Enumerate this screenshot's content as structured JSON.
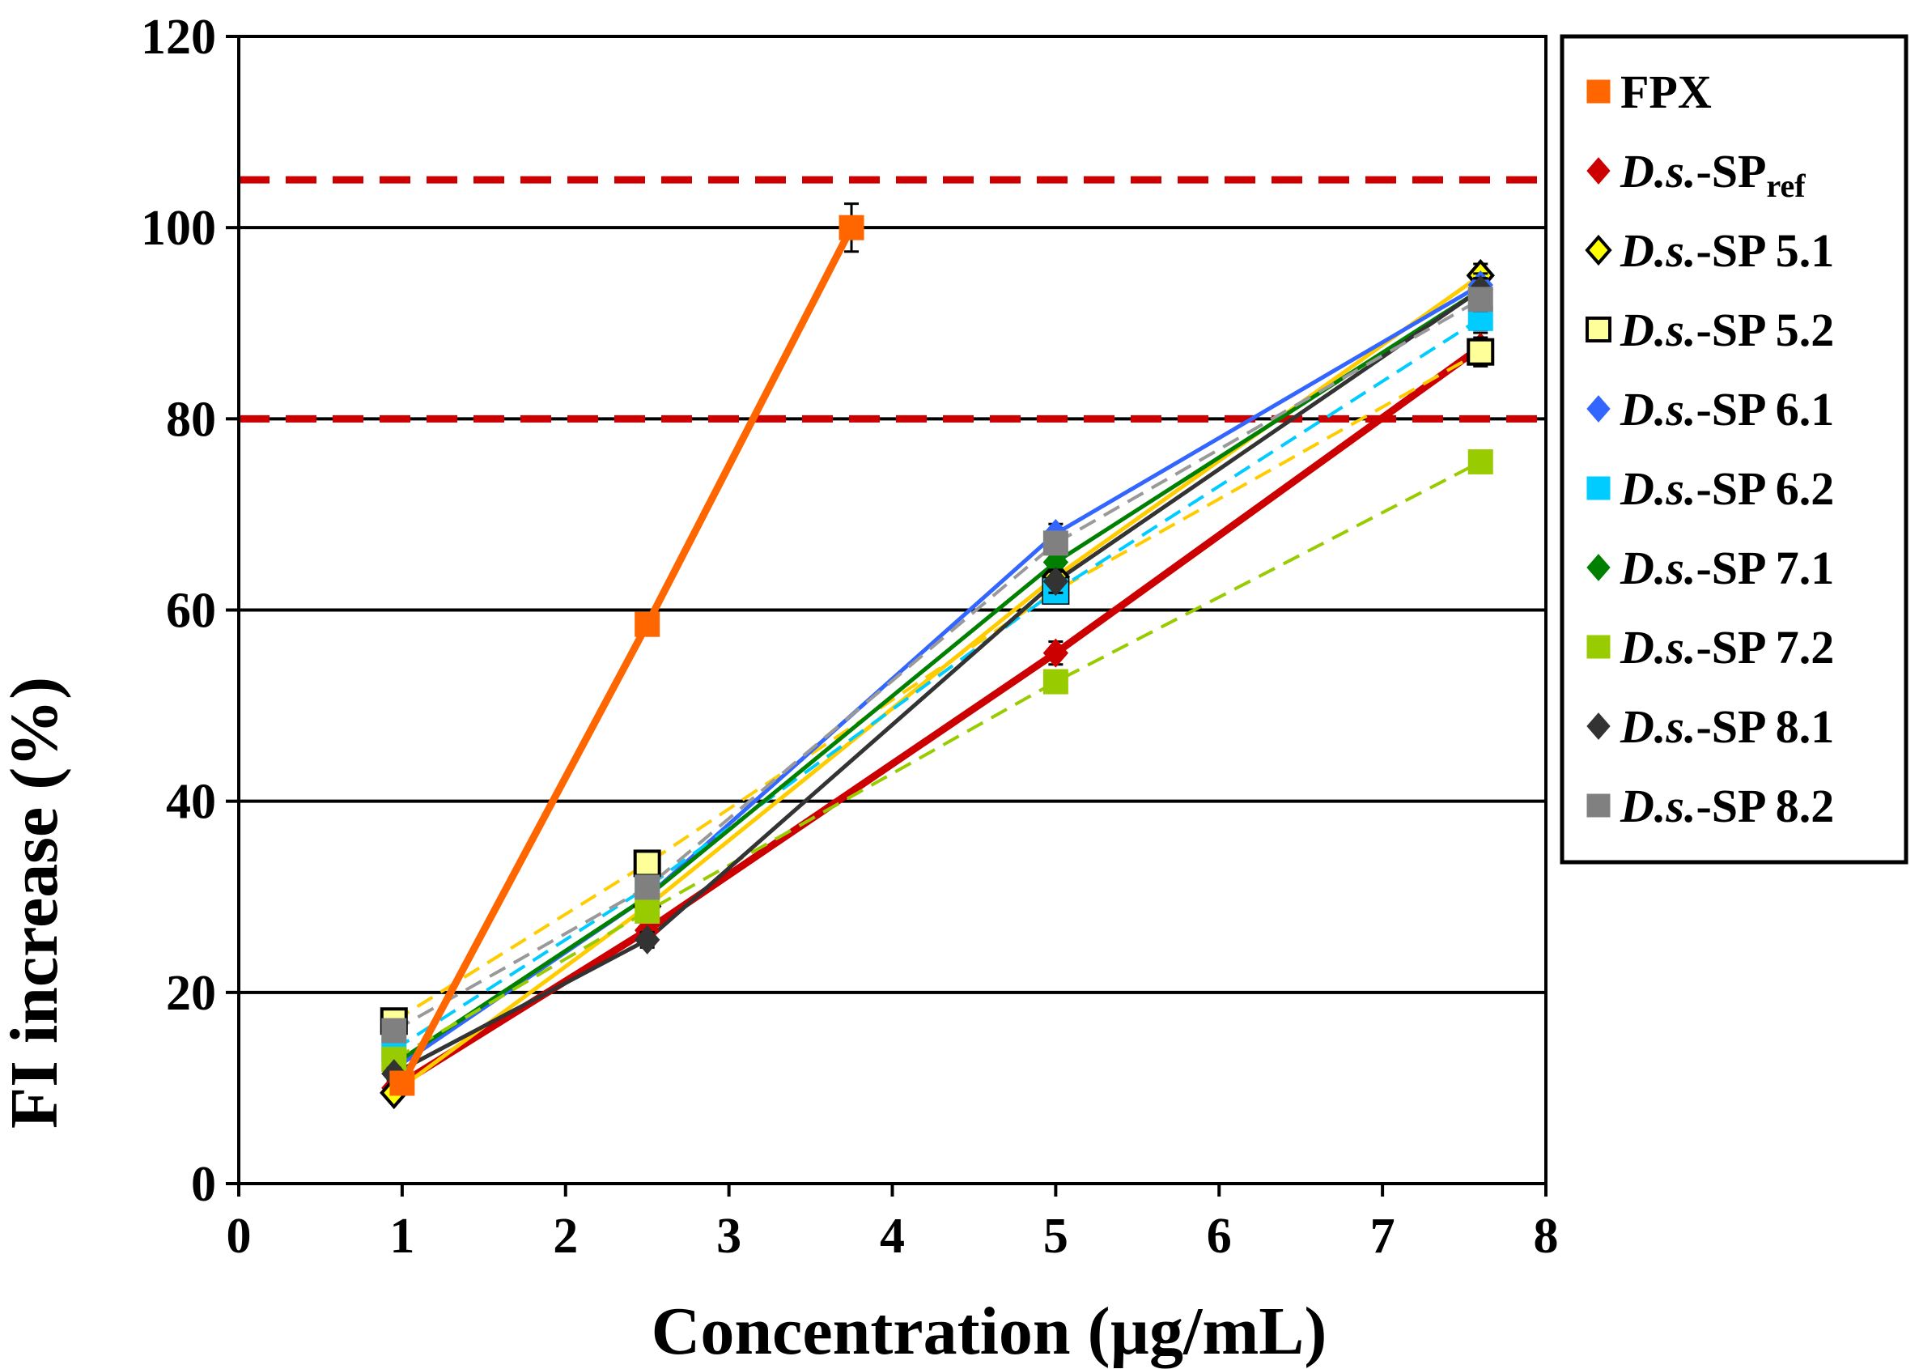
{
  "chart_data": {
    "type": "line",
    "title": "",
    "xlabel": "Concentration (µg/mL)",
    "ylabel": "FI increase (%)",
    "xlim": [
      0,
      8
    ],
    "ylim": [
      0,
      120
    ],
    "xticks": [
      0,
      1,
      2,
      3,
      4,
      5,
      6,
      7,
      8
    ],
    "yticks": [
      0,
      20,
      40,
      60,
      80,
      100,
      120
    ],
    "grid": "horizontal",
    "legend_position": "right",
    "reference_lines": [
      {
        "y": 105,
        "color": "#cc0000",
        "style": "dashed"
      },
      {
        "y": 80,
        "color": "#cc0000",
        "style": "dashed"
      }
    ],
    "series": [
      {
        "name": "FPX",
        "prefix": "",
        "suffix": "FPX",
        "subscript": "",
        "color": "#ff6600",
        "marker": "square-filled",
        "marker_color": "#ff6600",
        "line": "solid",
        "line_width": 9,
        "points": [
          [
            1.0,
            10.5
          ],
          [
            2.5,
            58.5
          ],
          [
            3.75,
            100.0
          ]
        ],
        "error": [
          1.0,
          1.0,
          2.5
        ]
      },
      {
        "name": "D.s.-SPref",
        "prefix": "D.s.",
        "suffix": "-SP",
        "subscript": "ref",
        "color": "#cc0000",
        "marker": "diamond-filled",
        "marker_color": "#cc0000",
        "line": "solid",
        "line_width": 9,
        "points": [
          [
            0.95,
            10.0
          ],
          [
            2.5,
            26.5
          ],
          [
            5.0,
            55.5
          ],
          [
            7.6,
            87.5
          ]
        ],
        "error": [
          0.8,
          0.8,
          1.2,
          1.5
        ]
      },
      {
        "name": "D.s.-SP 5.1",
        "prefix": "D.s.",
        "suffix": "-SP 5.1",
        "subscript": "",
        "color": "#ffcc00",
        "marker": "diamond-open",
        "marker_color": "#ffff00",
        "line": "solid",
        "line_width": 5,
        "points": [
          [
            0.95,
            9.5
          ],
          [
            2.5,
            29.0
          ],
          [
            5.0,
            63.5
          ],
          [
            7.6,
            95.0
          ]
        ],
        "error": [
          0.6,
          0.8,
          1.0,
          1.2
        ]
      },
      {
        "name": "D.s.-SP 5.2",
        "prefix": "D.s.",
        "suffix": "-SP 5.2",
        "subscript": "",
        "color": "#ffcc00",
        "marker": "square-open",
        "marker_color": "#ffff99",
        "line": "dashed",
        "line_width": 4,
        "points": [
          [
            0.95,
            17.0
          ],
          [
            2.5,
            33.5
          ],
          [
            5.0,
            62.0
          ],
          [
            7.6,
            87.0
          ]
        ],
        "error": [
          0.8,
          1.0,
          1.0,
          1.5
        ]
      },
      {
        "name": "D.s.-SP 6.1",
        "prefix": "D.s.",
        "suffix": "-SP 6.1",
        "subscript": "",
        "color": "#3366ff",
        "marker": "diamond-filled",
        "marker_color": "#3366ff",
        "line": "solid",
        "line_width": 5,
        "points": [
          [
            0.95,
            12.0
          ],
          [
            2.5,
            30.0
          ],
          [
            5.0,
            68.0
          ],
          [
            7.6,
            94.0
          ]
        ],
        "error": [
          0.6,
          0.8,
          1.0,
          1.2
        ]
      },
      {
        "name": "D.s.-SP 6.2",
        "prefix": "D.s.",
        "suffix": "-SP 6.2",
        "subscript": "",
        "color": "#00ccff",
        "marker": "square-filled",
        "marker_color": "#00ccff",
        "line": "dashed",
        "line_width": 4,
        "points": [
          [
            0.95,
            14.0
          ],
          [
            2.5,
            31.0
          ],
          [
            5.0,
            62.0
          ],
          [
            7.6,
            90.5
          ]
        ],
        "error": [
          0.6,
          0.8,
          1.0,
          1.2
        ]
      },
      {
        "name": "D.s.-SP 7.1",
        "prefix": "D.s.",
        "suffix": "-SP 7.1",
        "subscript": "",
        "color": "#008000",
        "marker": "diamond-filled",
        "marker_color": "#008000",
        "line": "solid",
        "line_width": 5,
        "points": [
          [
            0.95,
            12.5
          ],
          [
            2.5,
            30.0
          ],
          [
            5.0,
            65.0
          ],
          [
            7.6,
            93.5
          ]
        ],
        "error": [
          0.6,
          0.8,
          1.0,
          1.2
        ]
      },
      {
        "name": "D.s.-SP 7.2",
        "prefix": "D.s.",
        "suffix": "-SP 7.2",
        "subscript": "",
        "color": "#99cc00",
        "marker": "square-filled",
        "marker_color": "#99cc00",
        "line": "dashed",
        "line_width": 4,
        "points": [
          [
            0.95,
            13.0
          ],
          [
            2.5,
            28.5
          ],
          [
            5.0,
            52.5
          ],
          [
            7.6,
            75.5
          ]
        ],
        "error": [
          0.6,
          0.8,
          1.0,
          1.0
        ]
      },
      {
        "name": "D.s.-SP 8.1",
        "prefix": "D.s.",
        "suffix": "-SP 8.1",
        "subscript": "",
        "color": "#333333",
        "marker": "diamond-filled",
        "marker_color": "#333333",
        "line": "solid",
        "line_width": 5,
        "points": [
          [
            0.95,
            11.5
          ],
          [
            2.5,
            25.5
          ],
          [
            5.0,
            63.0
          ],
          [
            7.6,
            93.5
          ]
        ],
        "error": [
          0.6,
          0.8,
          1.2,
          1.2
        ]
      },
      {
        "name": "D.s.-SP 8.2",
        "prefix": "D.s.",
        "suffix": "-SP 8.2",
        "subscript": "",
        "color": "#999999",
        "marker": "square-filled",
        "marker_color": "#808080",
        "line": "dashed",
        "line_width": 4,
        "points": [
          [
            0.95,
            16.0
          ],
          [
            2.5,
            31.0
          ],
          [
            5.0,
            67.0
          ],
          [
            7.6,
            92.5
          ]
        ],
        "error": [
          0.6,
          0.8,
          1.0,
          1.2
        ]
      }
    ]
  }
}
